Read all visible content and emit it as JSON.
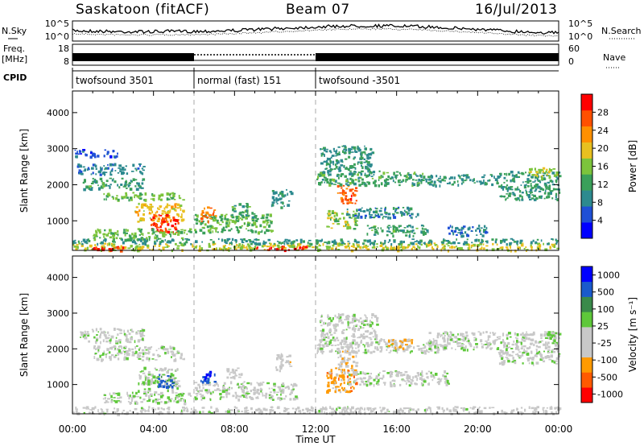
{
  "header": {
    "site": "Saskatoon (fitACF)",
    "beam": "Beam 07",
    "date": "16/Jul/2013"
  },
  "side_labels": {
    "nsky": "N.Sky",
    "nsearch": "N.Search",
    "freq_line1": "Freq.",
    "freq_line2": "[MHz]",
    "nave": "Nave",
    "cpid": "CPID"
  },
  "noise_axis": {
    "left_ticks": [
      "10^5",
      "10^0"
    ],
    "right_ticks": [
      "10^5",
      "10^0"
    ]
  },
  "freq_axis": {
    "left_ticks": [
      "18",
      "8"
    ],
    "right_ticks": [
      "60",
      "0"
    ]
  },
  "cpid_segments": [
    {
      "label": "twofsound 3501",
      "start_hour": 0,
      "end_hour": 6
    },
    {
      "label": "normal (fast) 151",
      "start_hour": 6,
      "end_hour": 12
    },
    {
      "label": "twofsound -3501",
      "start_hour": 12,
      "end_hour": 24
    }
  ],
  "x_axis": {
    "label": "Time UT",
    "ticks": [
      "00:00",
      "04:00",
      "08:00",
      "12:00",
      "16:00",
      "20:00",
      "00:00"
    ],
    "range_hours": [
      0,
      24
    ]
  },
  "chart_data": [
    {
      "type": "heatmap",
      "title": "",
      "ylabel": "Slant Range [km]",
      "xlabel": "",
      "ylim": [
        180,
        4600
      ],
      "yticks": [
        1000,
        2000,
        3000,
        4000
      ],
      "colorbar": {
        "label": "Power [dB]",
        "range": [
          0,
          32
        ],
        "ticks": [
          "4",
          "8",
          "12",
          "16",
          "20",
          "24",
          "28"
        ],
        "colors": [
          "#0000ff",
          "#1f4fd6",
          "#2d8a8f",
          "#3aa05a",
          "#7cc43c",
          "#e8c020",
          "#ff9000",
          "#ff5000",
          "#ff0000"
        ]
      },
      "regions": [
        {
          "h": [
            0.1,
            2.2
          ],
          "r": [
            2800,
            3000
          ],
          "v": 6
        },
        {
          "h": [
            0.2,
            3.5
          ],
          "r": [
            2300,
            2600
          ],
          "v": 8
        },
        {
          "h": [
            0.5,
            3.5
          ],
          "r": [
            1900,
            2200
          ],
          "v": 12
        },
        {
          "h": [
            1.5,
            5.5
          ],
          "r": [
            1600,
            1800
          ],
          "v": 14
        },
        {
          "h": [
            3.0,
            5.5
          ],
          "r": [
            1000,
            1500
          ],
          "v": 20
        },
        {
          "h": [
            3.8,
            5.2
          ],
          "r": [
            700,
            1200
          ],
          "v": 28
        },
        {
          "h": [
            1.0,
            5.8
          ],
          "r": [
            500,
            800
          ],
          "v": 15
        },
        {
          "h": [
            6.0,
            9.8
          ],
          "r": [
            700,
            1200
          ],
          "v": 14
        },
        {
          "h": [
            6.3,
            7.1
          ],
          "r": [
            1000,
            1400
          ],
          "v": 26
        },
        {
          "h": [
            7.8,
            9.0
          ],
          "r": [
            1100,
            1500
          ],
          "v": 12
        },
        {
          "h": [
            0.0,
            24.0
          ],
          "r": [
            200,
            400
          ],
          "v": 18
        },
        {
          "h": [
            0.0,
            24.0
          ],
          "r": [
            380,
            520
          ],
          "v": 10
        },
        {
          "h": [
            1.0,
            2.5
          ],
          "r": [
            200,
            300
          ],
          "v": 28
        },
        {
          "h": [
            9.0,
            11.5
          ],
          "r": [
            200,
            320
          ],
          "v": 30
        },
        {
          "h": [
            9.8,
            10.8
          ],
          "r": [
            1400,
            1900
          ],
          "v": 10
        },
        {
          "h": [
            12.2,
            14.8
          ],
          "r": [
            2300,
            3100
          ],
          "v": 10
        },
        {
          "h": [
            12.5,
            14.0
          ],
          "r": [
            800,
            1300
          ],
          "v": 16
        },
        {
          "h": [
            13.0,
            14.0
          ],
          "r": [
            1500,
            2000
          ],
          "v": 26
        },
        {
          "h": [
            12.0,
            17.5
          ],
          "r": [
            2000,
            2400
          ],
          "v": 12
        },
        {
          "h": [
            13.5,
            17.0
          ],
          "r": [
            1100,
            1400
          ],
          "v": 9
        },
        {
          "h": [
            14.5,
            17.5
          ],
          "r": [
            600,
            900
          ],
          "v": 12
        },
        {
          "h": [
            17.5,
            21.0
          ],
          "r": [
            2000,
            2300
          ],
          "v": 10
        },
        {
          "h": [
            21.0,
            24.0
          ],
          "r": [
            1600,
            2400
          ],
          "v": 11
        },
        {
          "h": [
            22.5,
            24.0
          ],
          "r": [
            2200,
            2500
          ],
          "v": 17
        },
        {
          "h": [
            18.5,
            20.5
          ],
          "r": [
            600,
            900
          ],
          "v": 8
        }
      ]
    },
    {
      "type": "heatmap",
      "title": "",
      "ylabel": "Slant Range [km]",
      "xlabel": "Time UT",
      "ylim": [
        180,
        4600
      ],
      "yticks": [
        1000,
        2000,
        3000,
        4000
      ],
      "colorbar": {
        "label": "Velocity [m s⁻¹]",
        "range": [
          -1200,
          1200
        ],
        "ticks": [
          "1000",
          "500",
          "100",
          "25",
          "-25",
          "-100",
          "-500",
          "-1000"
        ],
        "colors": [
          "#ff0000",
          "#ff5a00",
          "#ff9a00",
          "#c8c8c8",
          "#c8c8c8",
          "#5ec83a",
          "#3a8a4a",
          "#1a5acc",
          "#0000ff"
        ]
      },
      "regions": [
        {
          "h": [
            0.3,
            3.5
          ],
          "r": [
            2200,
            2600
          ],
          "v": 0
        },
        {
          "h": [
            1.0,
            5.5
          ],
          "r": [
            1700,
            2100
          ],
          "v": 0
        },
        {
          "h": [
            3.2,
            5.2
          ],
          "r": [
            800,
            1500
          ],
          "v": 80
        },
        {
          "h": [
            4.2,
            5.0
          ],
          "r": [
            900,
            1300
          ],
          "v": 700
        },
        {
          "h": [
            1.5,
            5.8
          ],
          "r": [
            500,
            800
          ],
          "v": 120
        },
        {
          "h": [
            6.0,
            11.0
          ],
          "r": [
            600,
            1100
          ],
          "v": 0
        },
        {
          "h": [
            6.3,
            7.0
          ],
          "r": [
            1100,
            1400
          ],
          "v": 900
        },
        {
          "h": [
            7.6,
            8.4
          ],
          "r": [
            1200,
            1500
          ],
          "v": -150
        },
        {
          "h": [
            10.0,
            10.8
          ],
          "r": [
            1400,
            1900
          ],
          "v": -200
        },
        {
          "h": [
            0.0,
            24.0
          ],
          "r": [
            200,
            400
          ],
          "v": -60
        },
        {
          "h": [
            12.5,
            14.0
          ],
          "r": [
            800,
            1500
          ],
          "v": -500
        },
        {
          "h": [
            13.0,
            14.0
          ],
          "r": [
            1500,
            2000
          ],
          "v": -300
        },
        {
          "h": [
            12.2,
            15.0
          ],
          "r": [
            2300,
            3000
          ],
          "v": 0
        },
        {
          "h": [
            12.0,
            18.0
          ],
          "r": [
            1900,
            2300
          ],
          "v": 0
        },
        {
          "h": [
            15.5,
            16.8
          ],
          "r": [
            2000,
            2300
          ],
          "v": -350
        },
        {
          "h": [
            13.5,
            18.5
          ],
          "r": [
            1000,
            1400
          ],
          "v": 0
        },
        {
          "h": [
            17.5,
            24.0
          ],
          "r": [
            2000,
            2500
          ],
          "v": 0
        },
        {
          "h": [
            21.0,
            24.0
          ],
          "r": [
            1600,
            2000
          ],
          "v": 0
        },
        {
          "h": [
            23.3,
            24.0
          ],
          "r": [
            2300,
            2500
          ],
          "v": 200
        }
      ]
    }
  ]
}
